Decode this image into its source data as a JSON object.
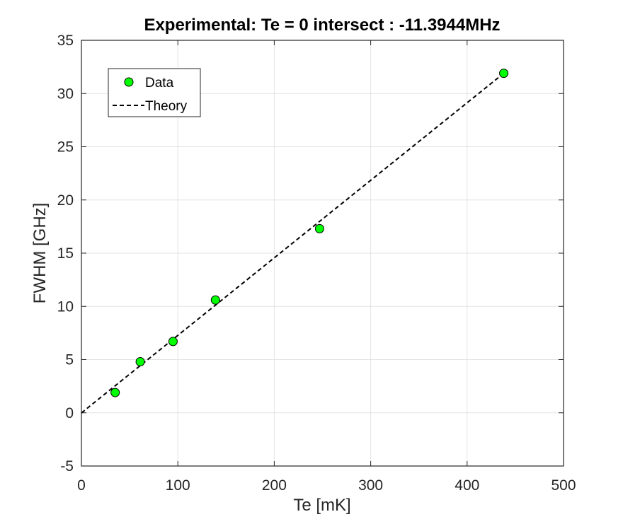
{
  "chart_data": {
    "type": "scatter",
    "title": "Experimental: Te = 0 intersect : -11.3944MHz",
    "xlabel": "Te [mK]",
    "ylabel": "FWHM [GHz]",
    "xlim": [
      0,
      500
    ],
    "ylim": [
      -5,
      35
    ],
    "xticks": [
      0,
      100,
      200,
      300,
      400,
      500
    ],
    "yticks": [
      -5,
      0,
      5,
      10,
      15,
      20,
      25,
      30,
      35
    ],
    "grid": true,
    "legend_position": "top-left",
    "series": [
      {
        "name": "Data",
        "kind": "scatter",
        "marker": "circle",
        "color": "#00ff00",
        "edge_color": "#000000",
        "x": [
          35,
          61,
          95,
          139,
          247,
          438
        ],
        "y": [
          1.9,
          4.8,
          6.7,
          10.6,
          17.3,
          31.9
        ]
      },
      {
        "name": "Theory",
        "kind": "line",
        "style": "dashed",
        "color": "#000000",
        "x": [
          0,
          438
        ],
        "y": [
          -0.0114,
          31.9
        ]
      }
    ]
  }
}
